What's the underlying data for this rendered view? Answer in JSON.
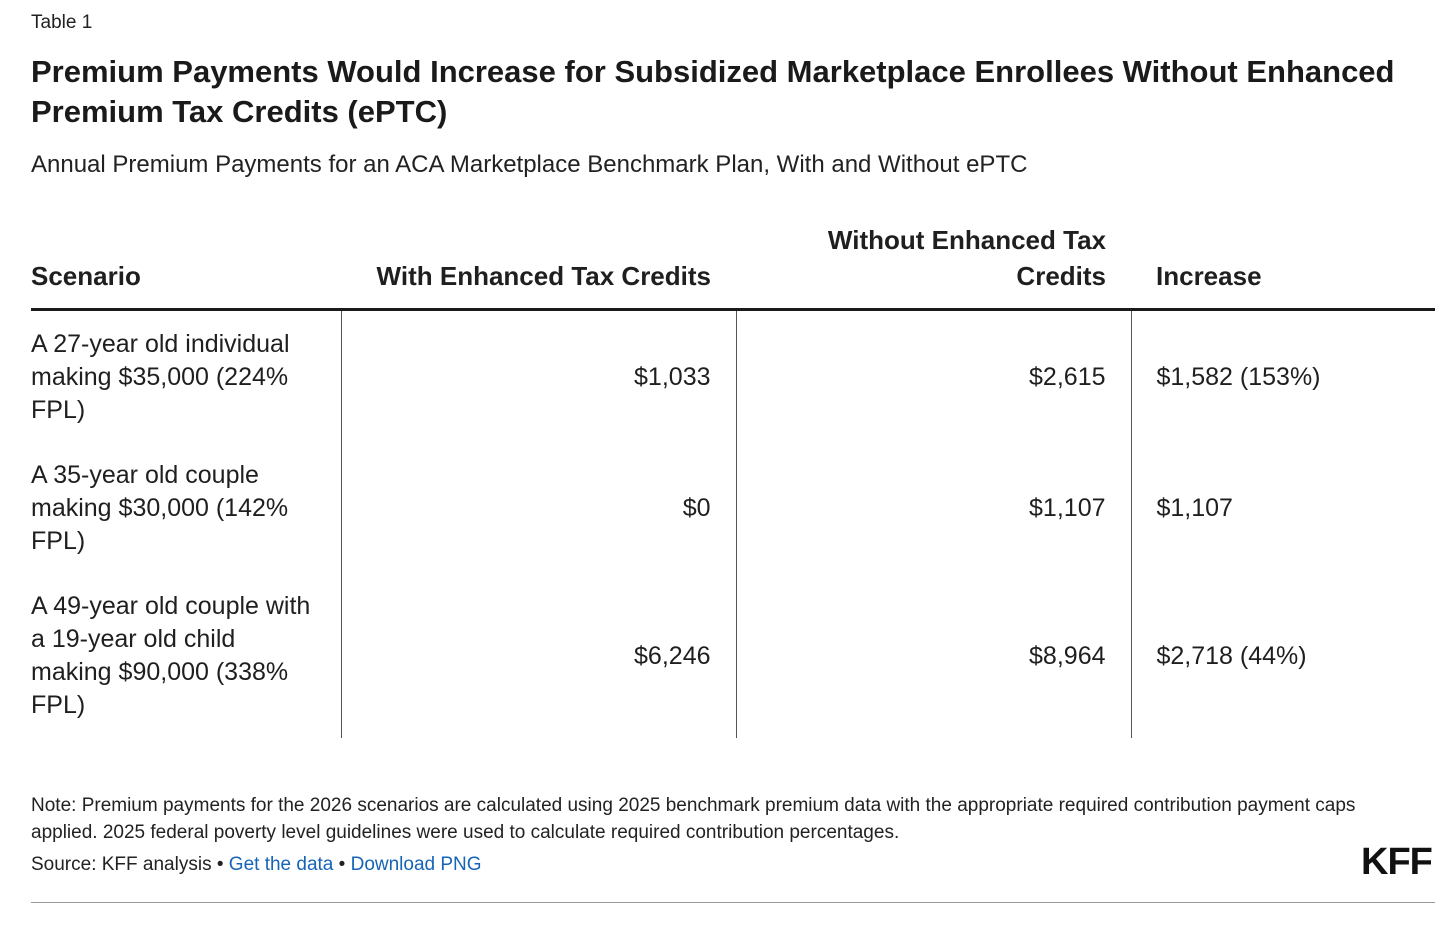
{
  "table_label": "Table 1",
  "title": "Premium Payments Would Increase for Subsidized Marketplace Enrollees Without Enhanced Premium Tax Credits (ePTC)",
  "subtitle": "Annual Premium Payments for an ACA Marketplace Benchmark Plan, With and Without ePTC",
  "table": {
    "headers": [
      "Scenario",
      "With Enhanced Tax Credits",
      "Without Enhanced Tax Credits",
      "Increase"
    ],
    "rows": [
      [
        "A 27-year old individual making $35,000 (224% FPL)",
        "$1,033",
        "$2,615",
        "$1,582 (153%)"
      ],
      [
        "A 35-year old couple making $30,000 (142% FPL)",
        "$0",
        "$1,107",
        "$1,107"
      ],
      [
        "A 49-year old couple with a 19-year old child making $90,000 (338% FPL)",
        "$6,246",
        "$8,964",
        "$2,718 (44%)"
      ]
    ]
  },
  "note": "Note: Premium payments for the 2026 scenarios are calculated using 2025 benchmark premium data with the appropriate required contribution payment caps applied. 2025 federal poverty level guidelines were used to calculate required contribution percentages.",
  "source": {
    "prefix": "Source: KFF analysis",
    "separator": "•",
    "get_data_label": "Get the data",
    "download_label": "Download PNG"
  },
  "logo": "KFF",
  "colors": {
    "link": "#1664b8",
    "text": "#1a1a1a"
  }
}
